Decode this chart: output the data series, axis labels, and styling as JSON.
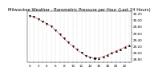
{
  "title": "Milwaukee Weather - Barometric Pressure per Hour (Last 24 Hours)",
  "hours": [
    0,
    1,
    2,
    3,
    4,
    5,
    6,
    7,
    8,
    9,
    10,
    11,
    12,
    13,
    14,
    15,
    16,
    17,
    18,
    19,
    20,
    21,
    22,
    23
  ],
  "pressure": [
    30.12,
    30.08,
    30.02,
    29.95,
    29.88,
    29.8,
    29.68,
    29.55,
    29.42,
    29.3,
    29.18,
    29.08,
    28.98,
    28.9,
    28.85,
    28.82,
    28.83,
    28.87,
    28.92,
    28.98,
    29.04,
    29.1,
    29.16,
    29.22
  ],
  "line_color": "#cc0000",
  "marker_color": "#000000",
  "bg_color": "#ffffff",
  "grid_color": "#999999",
  "ylim_min": 28.7,
  "ylim_max": 30.25,
  "title_fontsize": 3.8,
  "tick_fontsize": 3.0,
  "ytick_values": [
    28.8,
    29.0,
    29.2,
    29.4,
    29.6,
    29.8,
    30.0,
    30.2
  ]
}
